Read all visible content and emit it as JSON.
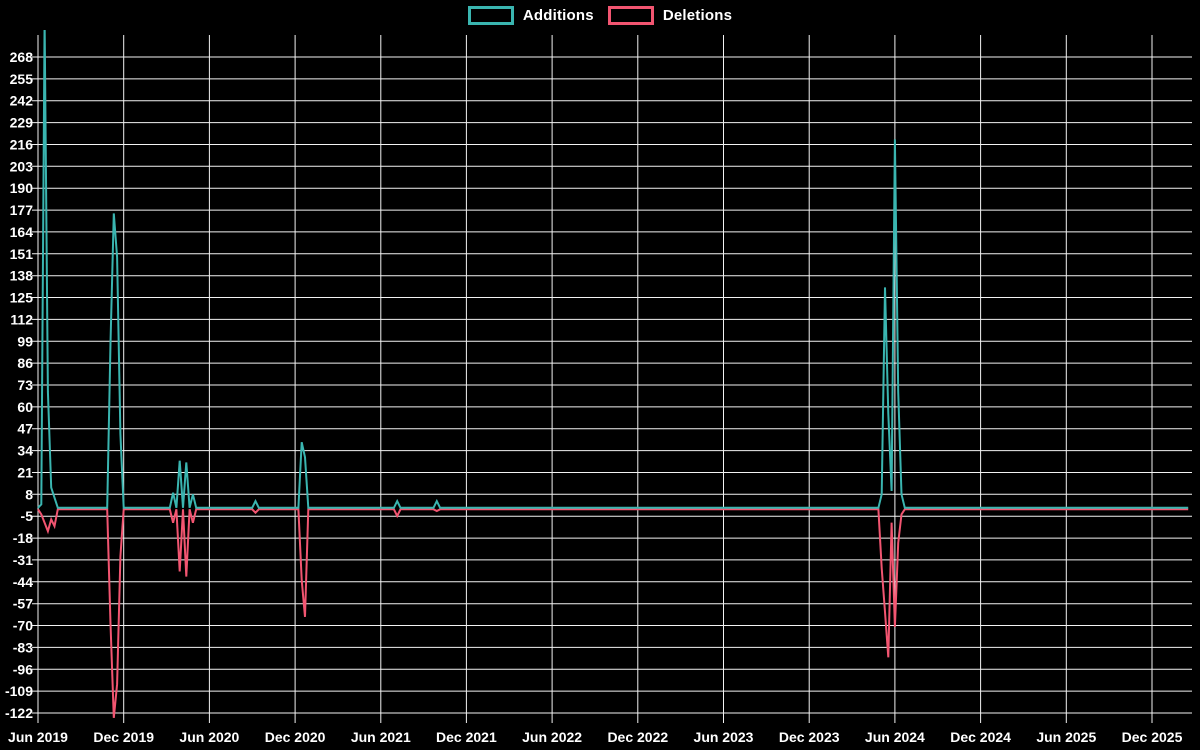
{
  "legend": {
    "items": [
      {
        "label": "Additions",
        "color": "#3ab5b0"
      },
      {
        "label": "Deletions",
        "color": "#f25571"
      }
    ]
  },
  "chart_data": {
    "type": "line",
    "title": "",
    "xlabel": "",
    "ylabel": "",
    "background_color": "#000000",
    "grid_color": "#f2f2f2",
    "text_color": "#ffffff",
    "grid": "on",
    "legend_position": "top-center",
    "x_ticks": [
      "Jun 2019",
      "Dec 2019",
      "Jun 2020",
      "Dec 2020",
      "Jun 2021",
      "Dec 2021",
      "Jun 2022",
      "Dec 2022",
      "Jun 2023",
      "Dec 2023",
      "Jun 2024",
      "Dec 2024",
      "Jun 2025",
      "Dec 2025"
    ],
    "y_ticks": [
      268,
      255,
      242,
      229,
      216,
      203,
      190,
      177,
      164,
      151,
      138,
      125,
      112,
      99,
      86,
      73,
      60,
      47,
      34,
      21,
      8,
      -5,
      -18,
      -31,
      -44,
      -57,
      -70,
      -83,
      -96,
      -109,
      -122
    ],
    "y_range": [
      -122,
      268
    ],
    "weeks_per_tick": 26,
    "weeks_total": 350,
    "baseline_value": 0,
    "series": [
      {
        "name": "Additions",
        "color": "#3ab5b0",
        "points": {
          "1": 2,
          "2": 290,
          "3": 69,
          "4": 12,
          "5": 6,
          "22": 98,
          "23": 175,
          "24": 149,
          "25": 44,
          "41": 9,
          "43": 28,
          "45": 27,
          "47": 8,
          "66": 4,
          "80": 39,
          "81": 30,
          "109": 4,
          "121": 4,
          "256": 8,
          "257": 131,
          "258": 56,
          "259": 10,
          "260": 219,
          "261": 69,
          "262": 8
        }
      },
      {
        "name": "Deletions",
        "color": "#f25571",
        "points": {
          "1": -3,
          "2": -8,
          "3": -13,
          "4": -6,
          "5": -10,
          "22": -68,
          "23": -124,
          "24": -104,
          "25": -28,
          "41": -8,
          "43": -37,
          "45": -40,
          "47": -8,
          "66": -2,
          "80": -42,
          "81": -64,
          "109": -4,
          "121": -1,
          "256": -35,
          "257": -61,
          "258": -88,
          "259": -8,
          "260": -70,
          "261": -20,
          "262": -3
        }
      }
    ]
  }
}
